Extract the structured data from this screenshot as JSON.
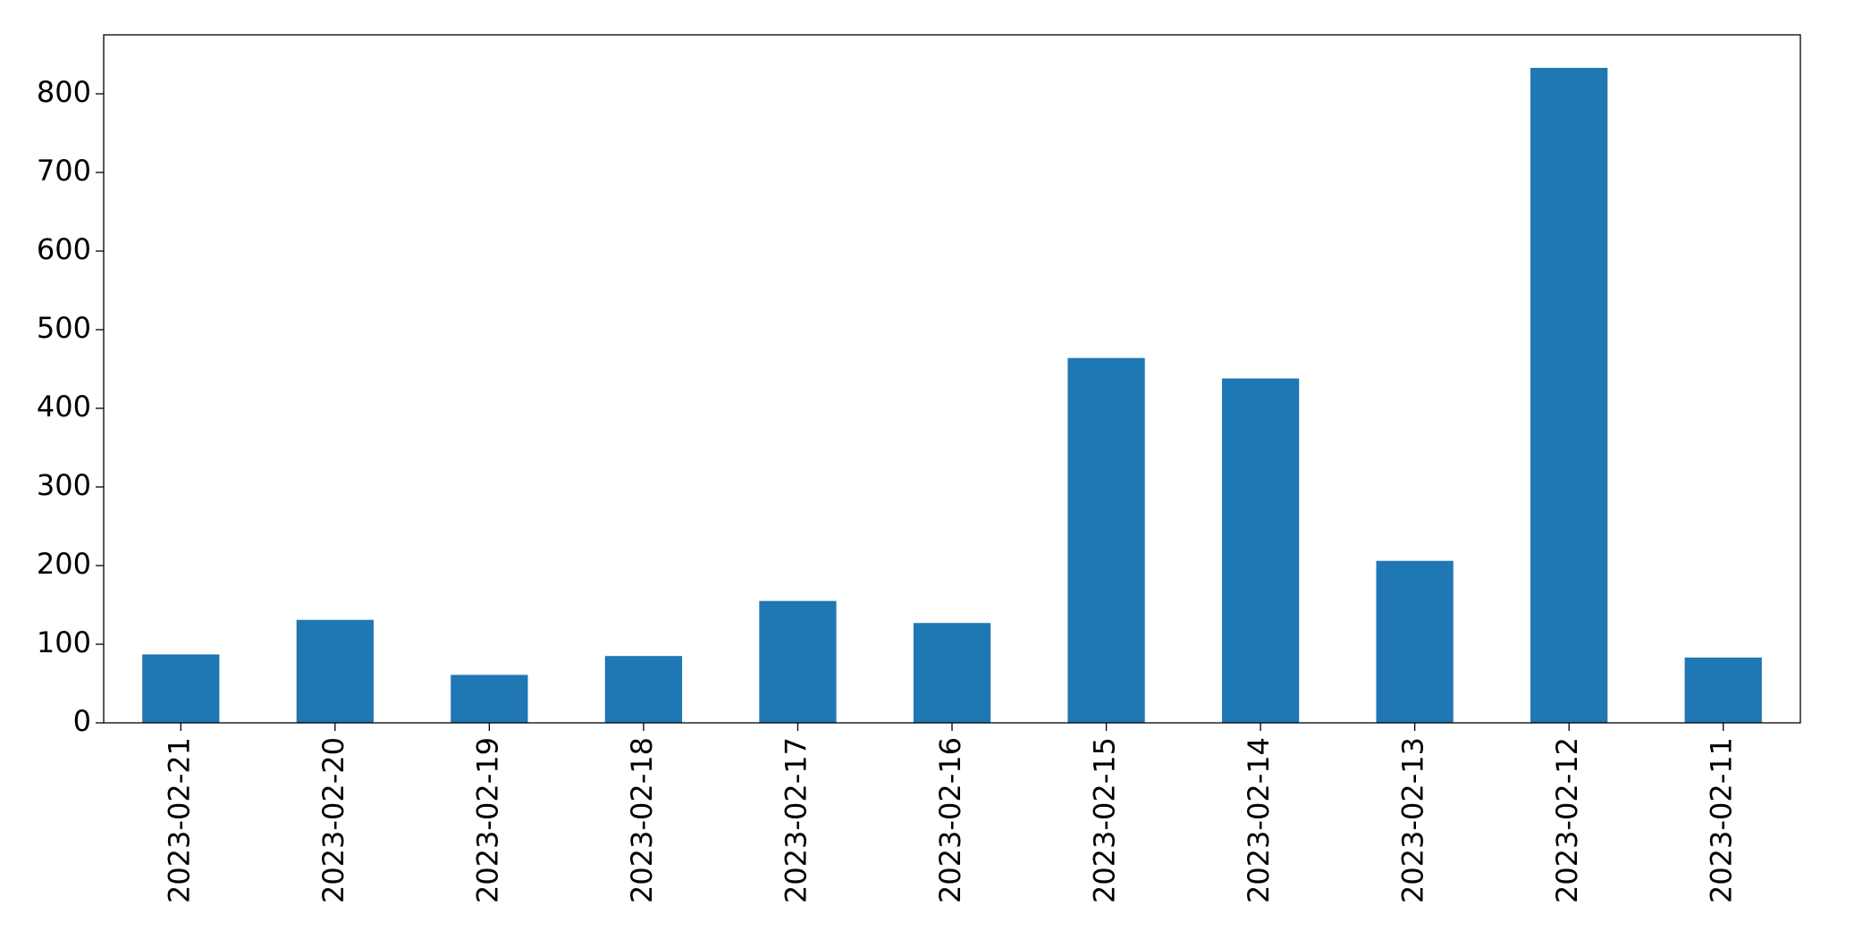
{
  "chart_data": {
    "type": "bar",
    "categories": [
      "2023-02-21",
      "2023-02-20",
      "2023-02-19",
      "2023-02-18",
      "2023-02-17",
      "2023-02-16",
      "2023-02-15",
      "2023-02-14",
      "2023-02-13",
      "2023-02-12",
      "2023-02-11"
    ],
    "values": [
      87,
      131,
      61,
      85,
      155,
      127,
      464,
      438,
      206,
      833,
      83
    ],
    "color": "#1f77b4",
    "ylim": [
      0,
      875
    ],
    "yticks": [
      0,
      100,
      200,
      300,
      400,
      500,
      600,
      700,
      800
    ],
    "grid": false
  }
}
